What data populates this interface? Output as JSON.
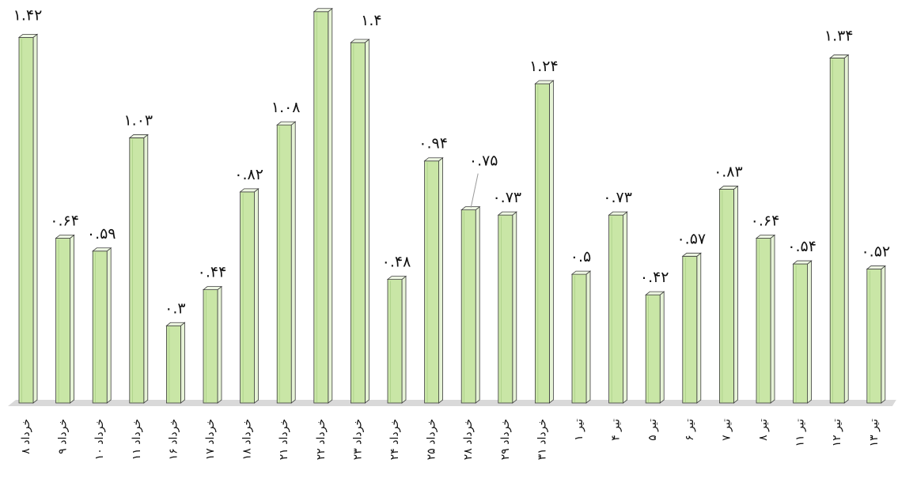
{
  "chart_data": {
    "type": "bar",
    "categories": [
      "۸ خرداد",
      "۹ خرداد",
      "۱۰ خرداد",
      "۱۱ خرداد",
      "۱۶ خرداد",
      "۱۷ خرداد",
      "۱۸ خرداد",
      "۲۱ خرداد",
      "۲۲ خرداد",
      "۲۳ خرداد",
      "۲۴ خرداد",
      "۲۵ خرداد",
      "۲۸ خرداد",
      "۲۹ خرداد",
      "۳۱ خرداد",
      "۱ تیر",
      "۴ تیر",
      "۵ تیر",
      "۶ تیر",
      "۷ تیر",
      "۸ تیر",
      "۱۱ تیر",
      "۱۲ تیر",
      "۱۳ تیر"
    ],
    "values": [
      1.42,
      0.64,
      0.59,
      1.03,
      0.3,
      0.44,
      0.82,
      1.08,
      1.52,
      1.4,
      0.48,
      0.94,
      0.75,
      0.73,
      1.24,
      0.5,
      0.73,
      0.42,
      0.57,
      0.83,
      0.64,
      0.54,
      1.34,
      0.52
    ],
    "labels": [
      "۱.۴۲",
      "۰.۶۴",
      "۰.۵۹",
      "۱.۰۳",
      "۰.۳",
      "۰.۴۴",
      "۰.۸۲",
      "۱.۰۸",
      "",
      "۱.۴",
      "۰.۴۸",
      "۰.۹۴",
      "۰.۷۵",
      "۰.۷۳",
      "۱.۲۴",
      "۰.۵",
      "۰.۷۳",
      "۰.۴۲",
      "۰.۵۷",
      "۰.۸۳",
      "۰.۶۴",
      "۰.۵۴",
      "۱.۳۴",
      "۰.۵۲"
    ],
    "title": "",
    "xlabel": "",
    "ylabel": "",
    "ylim": [
      0,
      1.55
    ],
    "grid": false,
    "legend": "none",
    "colors": {
      "bar_face": "#c9e6a6",
      "bar_side": "#e6f3d6",
      "bar_top": "#eef7e3",
      "bar_edge": "#3d3d3d",
      "floor": "#d9d9d9",
      "leader": "#9a9a9a"
    }
  }
}
